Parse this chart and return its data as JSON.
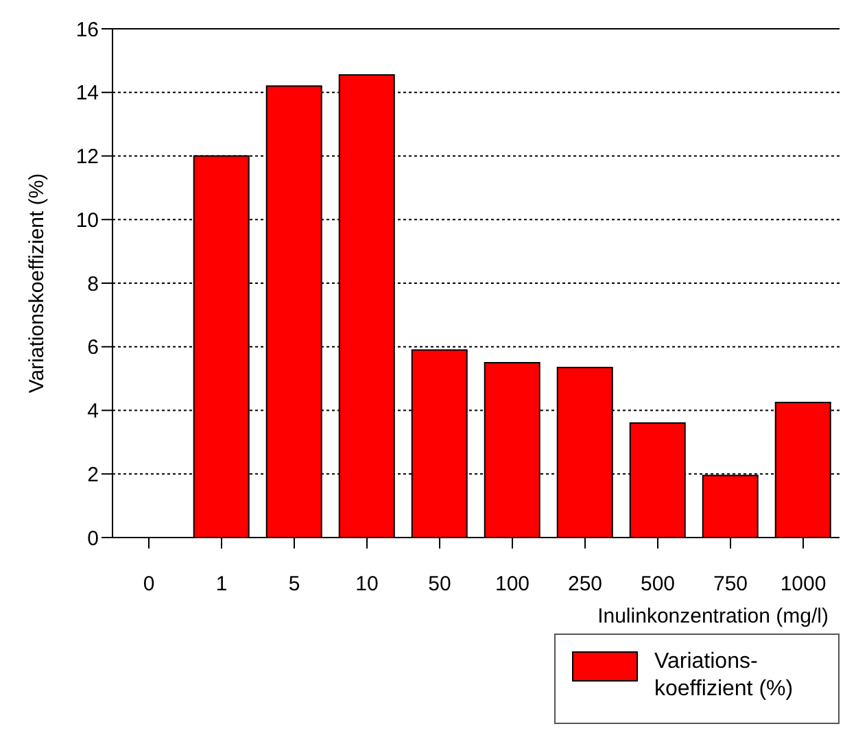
{
  "chart_data": {
    "type": "bar",
    "xlabel": "Inulinkonzentration (mg/l)",
    "ylabel": "Variationskoeffizient (%)",
    "categories": [
      "0",
      "1",
      "5",
      "10",
      "50",
      "100",
      "250",
      "500",
      "750",
      "1000"
    ],
    "series": [
      {
        "name": "Variations-\nkoeffizient (%)",
        "color": "#ff0000",
        "values": [
          0,
          12.0,
          14.2,
          14.55,
          5.9,
          5.5,
          5.35,
          3.6,
          1.95,
          4.25
        ]
      }
    ],
    "ylim": [
      0,
      16
    ],
    "yticks": [
      0,
      2,
      4,
      6,
      8,
      10,
      12,
      14,
      16
    ],
    "grid": "y",
    "legend": "bottom right"
  }
}
